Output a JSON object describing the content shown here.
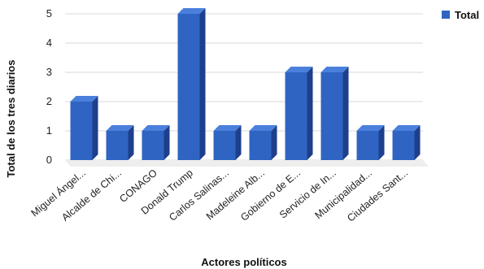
{
  "chart_data": {
    "type": "bar",
    "categories": [
      "Miguel Ángel...",
      "Alcalde de Chi...",
      "CONAGO",
      "Donald Trump",
      "Carlos Salinas...",
      "Madeleine Alb...",
      "Gobierno de E...",
      "Servicio de In...",
      "Municipalidad...",
      "Ciudades Sant..."
    ],
    "series": [
      {
        "name": "Total",
        "values": [
          2,
          1,
          1,
          5,
          1,
          1,
          3,
          3,
          1,
          1
        ]
      }
    ],
    "xlabel": "Actores políticos",
    "ylabel": "Total de los tres diarios",
    "ylim": [
      0,
      5
    ],
    "yticks": [
      0,
      1,
      2,
      3,
      4,
      5
    ],
    "grid": true,
    "legend": "top-right",
    "colors": {
      "front": "#2f64c2",
      "side": "#1e3f8c",
      "top": "#4a80dc"
    }
  }
}
